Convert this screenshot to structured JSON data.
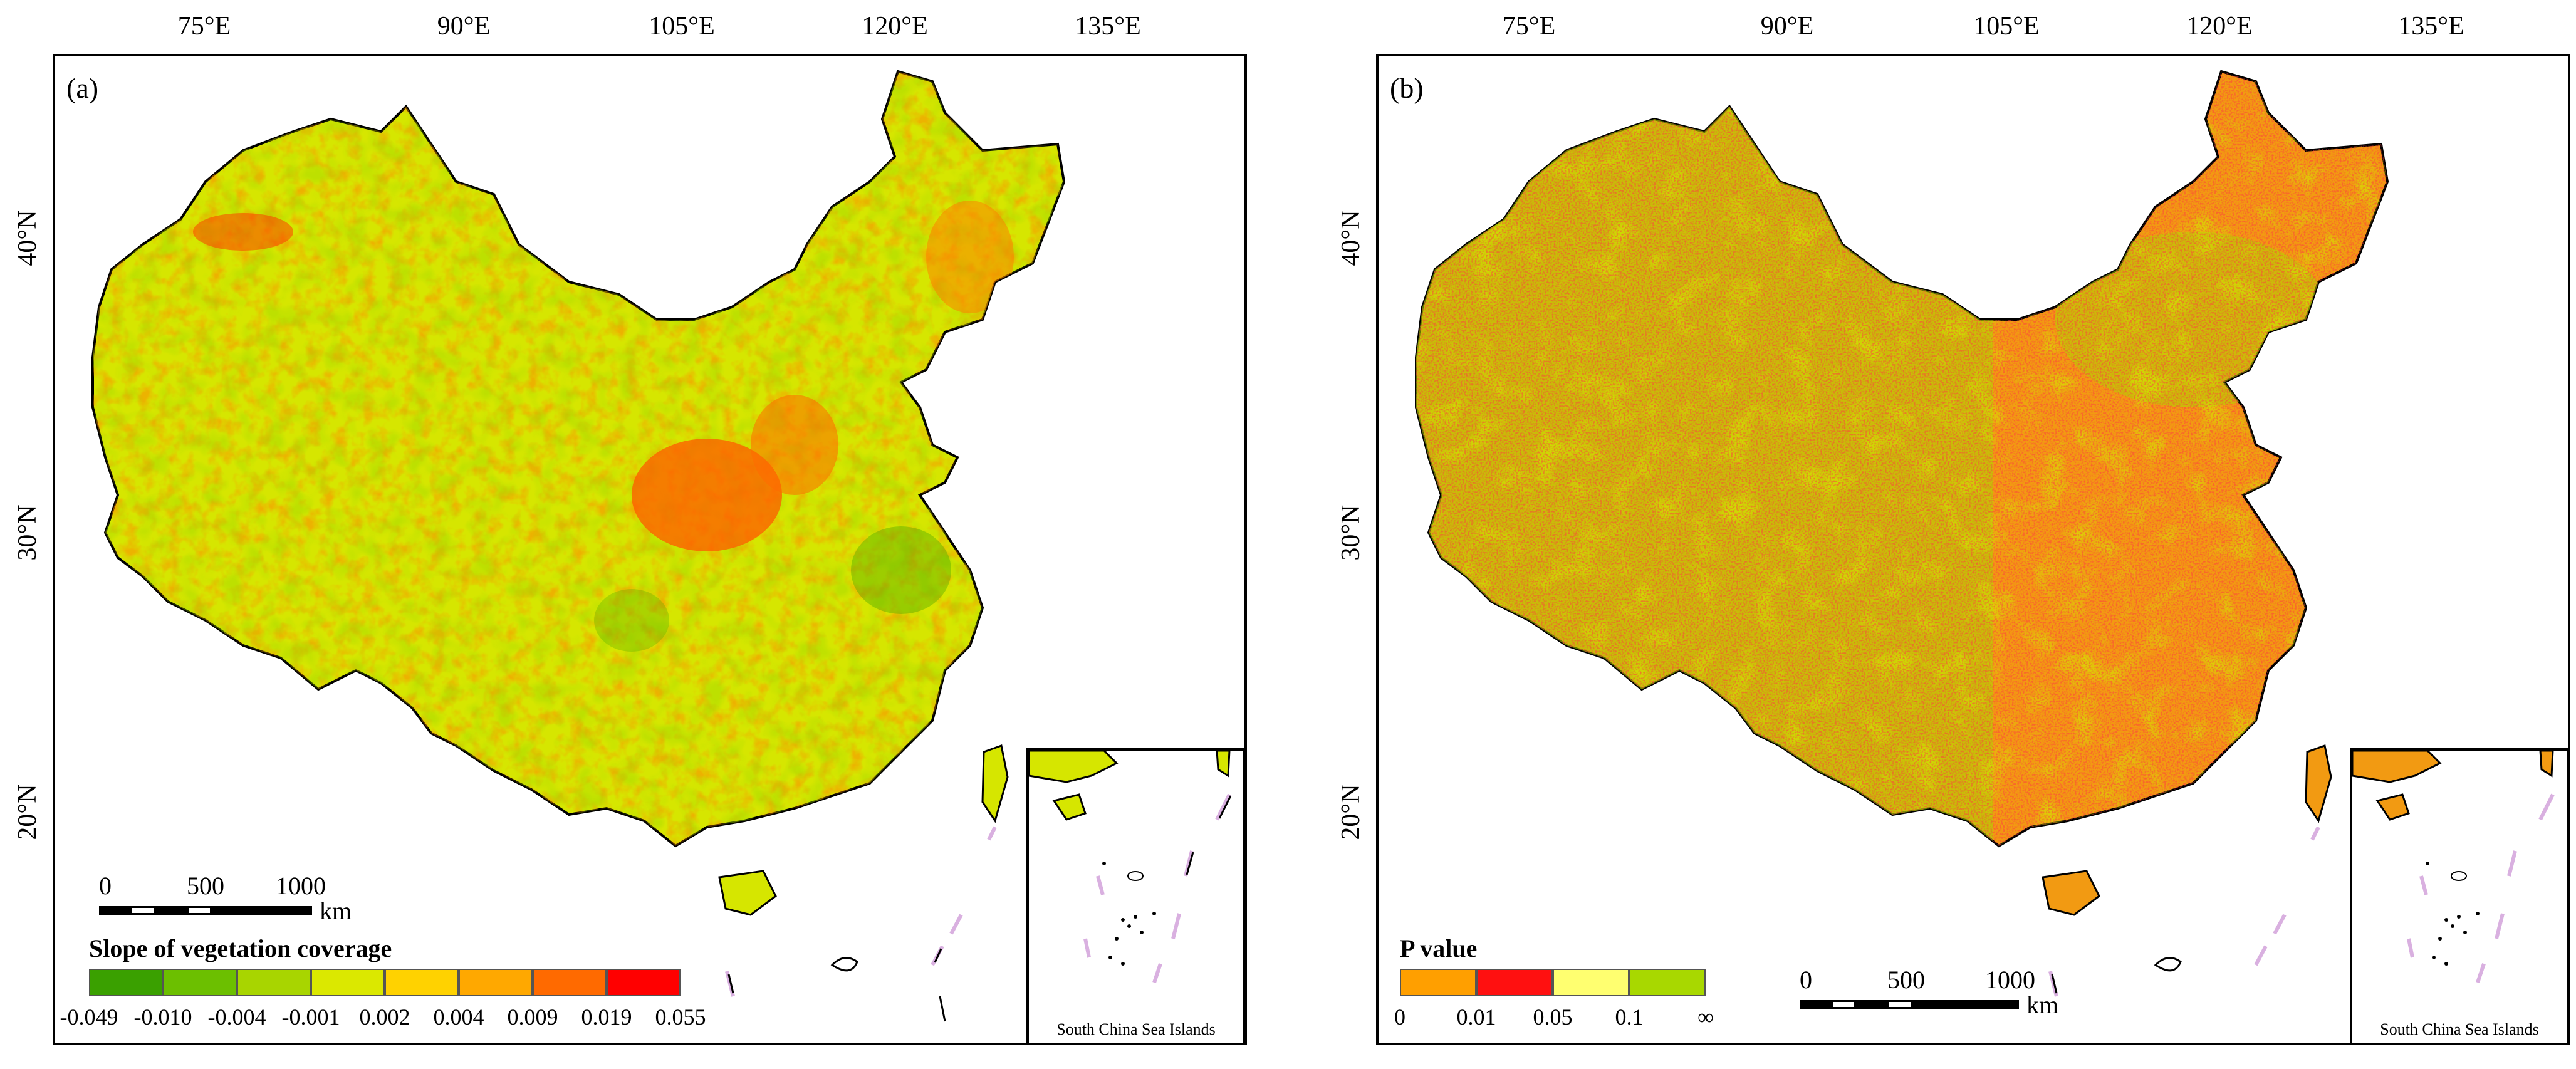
{
  "longitude_ticks": [
    "75°E",
    "90°E",
    "105°E",
    "120°E",
    "135°E"
  ],
  "latitude_ticks": [
    "40°N",
    "30°N",
    "20°N"
  ],
  "inset_caption": "South China Sea Islands",
  "scale_unit": "km",
  "panel_a": {
    "label": "(a)",
    "scale_labels": [
      "0",
      "500",
      "1000"
    ],
    "legend_title": "Slope of vegetation coverage",
    "legend_ticks": [
      "-0.049",
      "-0.010",
      "-0.004",
      "-0.001",
      "0.002",
      "0.004",
      "0.009",
      "0.019",
      "0.055"
    ],
    "legend_colors": [
      "#3aa000",
      "#6cbf00",
      "#a8d500",
      "#dbe800",
      "#ffd200",
      "#ffa800",
      "#ff6a00",
      "#ff0000"
    ],
    "base_color": "#d6e600"
  },
  "panel_b": {
    "label": "(b)",
    "scale_labels": [
      "0",
      "500",
      "1000"
    ],
    "legend_title": "P value",
    "legend_ticks": [
      "0",
      "0.01",
      "0.05",
      "0.1",
      "∞"
    ],
    "legend_colors": [
      "#ff9f00",
      "#ff1010",
      "#ffff70",
      "#a8d800"
    ],
    "base_color": "#f29a12"
  }
}
